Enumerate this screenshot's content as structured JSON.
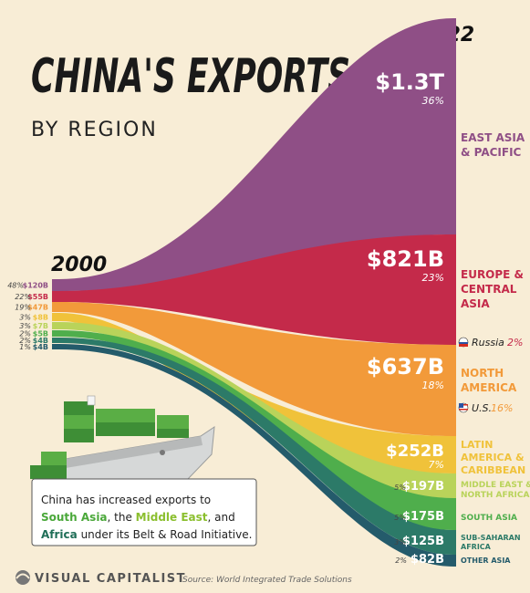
{
  "title": "CHINA'S EXPORTS",
  "subtitle": "BY REGION",
  "year_start": "2000",
  "year_end": "2022",
  "callout_text": [
    [
      {
        "t": "China has increased exports to",
        "c": "#222222",
        "b": false
      }
    ],
    [
      {
        "t": "South Asia",
        "c": "#4aa83a",
        "b": true
      },
      {
        "t": ", the ",
        "c": "#222222",
        "b": false
      },
      {
        "t": "Middle East",
        "c": "#8bbf2e",
        "b": true
      },
      {
        "t": ", and",
        "c": "#222222",
        "b": false
      }
    ],
    [
      {
        "t": "Africa",
        "c": "#1f6e57",
        "b": true
      },
      {
        "t": " under its Belt & Road Initiative.",
        "c": "#222222",
        "b": false
      }
    ]
  ],
  "brand": "VISUAL CAPITALIST",
  "source": "Source: World Integrated Trade Solutions",
  "russia": {
    "label": "Russia",
    "pct": "2%"
  },
  "us": {
    "label": "U.S.",
    "pct": "16%"
  },
  "chart_data": {
    "type": "sankey-area",
    "title": "CHINA'S EXPORTS",
    "subtitle": "BY REGION",
    "x": [
      "2000",
      "2022"
    ],
    "series": [
      {
        "name": "EAST ASIA & PACIFIC",
        "color": "#8f4f86",
        "start_label": "$120B",
        "start_pct": "48%",
        "end_label": "$1.3T",
        "end_pct": "36%"
      },
      {
        "name": "EUROPE & CENTRAL ASIA",
        "color": "#c42a4a",
        "start_label": "$55B",
        "start_pct": "22%",
        "end_label": "$821B",
        "end_pct": "23%"
      },
      {
        "name": "NORTH AMERICA",
        "color": "#f29a3a",
        "start_label": "$47B",
        "start_pct": "19%",
        "end_label": "$637B",
        "end_pct": "18%"
      },
      {
        "name": "LATIN AMERICA & CARIBBEAN",
        "color": "#f0c23a",
        "start_label": "$8B",
        "start_pct": "3%",
        "end_label": "$252B",
        "end_pct": "7%"
      },
      {
        "name": "MIDDLE EAST & NORTH AFRICA",
        "color": "#b9d35a",
        "start_label": "$7B",
        "start_pct": "3%",
        "end_label": "$197B",
        "end_pct": "5%"
      },
      {
        "name": "SOUTH ASIA",
        "color": "#4fae4c",
        "start_label": "$5B",
        "start_pct": "2%",
        "end_label": "$175B",
        "end_pct": "5%"
      },
      {
        "name": "SUB-SAHARAN AFRICA",
        "color": "#2c7a68",
        "start_label": "$4B",
        "start_pct": "2%",
        "end_label": "$125B",
        "end_pct": "3%"
      },
      {
        "name": "OTHER ASIA",
        "color": "#245b6b",
        "start_label": "$4B",
        "start_pct": "1%",
        "end_label": "$82B",
        "end_pct": "2%"
      }
    ]
  }
}
